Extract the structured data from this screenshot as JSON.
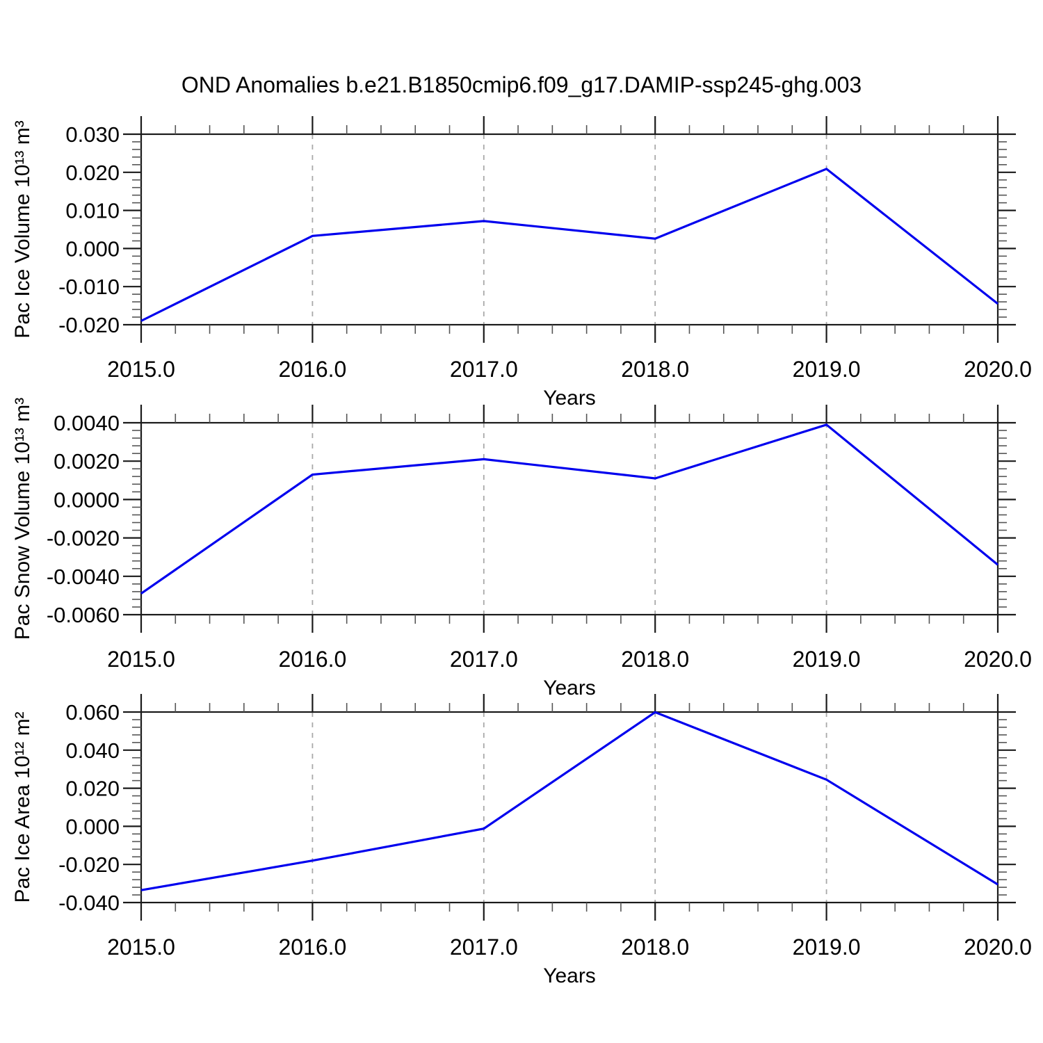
{
  "title": "OND Anomalies b.e21.B1850cmip6.f09_g17.DAMIP-ssp245-ghg.003",
  "line_color": "#0000ee",
  "grid_color": "#a9a9a9",
  "frame_color": "#1a1a1a",
  "minor_tick_color": "#555555",
  "chart_data": [
    {
      "type": "line",
      "name": "pac-ice-volume",
      "ylabel": "Pac Ice Volume 10¹³ m³",
      "xlabel": "Years",
      "x": [
        2015.0,
        2016.0,
        2017.0,
        2018.0,
        2019.0,
        2020.0
      ],
      "values": [
        -0.019,
        0.0033,
        0.0072,
        0.0026,
        0.0209,
        -0.0145
      ],
      "xlim": [
        2015.0,
        2020.0
      ],
      "ylim": [
        -0.02,
        0.03
      ],
      "ytick_step": 0.01,
      "x_minor_step": 0.2,
      "ytick_labels": [
        "0.030",
        "0.020",
        "0.010",
        "0.000",
        "-0.010",
        "-0.020"
      ],
      "xtick_labels": [
        "2015.0",
        "2016.0",
        "2017.0",
        "2018.0",
        "2019.0",
        "2020.0"
      ],
      "grid_x": [
        2016.0,
        2017.0,
        2018.0,
        2019.0
      ],
      "grid_on": "vertical-dashed",
      "legend": "none"
    },
    {
      "type": "line",
      "name": "pac-snow-volume",
      "ylabel": "Pac Snow Volume 10¹³ m³",
      "xlabel": "Years",
      "x": [
        2015.0,
        2016.0,
        2017.0,
        2018.0,
        2019.0,
        2020.0
      ],
      "values": [
        -0.0049,
        0.0013,
        0.0021,
        0.0011,
        0.0039,
        -0.0034
      ],
      "xlim": [
        2015.0,
        2020.0
      ],
      "ylim": [
        -0.006,
        0.004
      ],
      "ytick_step": 0.002,
      "x_minor_step": 0.2,
      "ytick_labels": [
        "0.0040",
        "0.0020",
        "0.0000",
        "-0.0020",
        "-0.0040",
        "-0.0060"
      ],
      "xtick_labels": [
        "2015.0",
        "2016.0",
        "2017.0",
        "2018.0",
        "2019.0",
        "2020.0"
      ],
      "grid_x": [
        2016.0,
        2017.0,
        2018.0,
        2019.0
      ],
      "grid_on": "vertical-dashed",
      "legend": "none"
    },
    {
      "type": "line",
      "name": "pac-ice-area",
      "ylabel": "Pac Ice Area 10¹² m²",
      "xlabel": "Years",
      "x": [
        2015.0,
        2016.0,
        2017.0,
        2018.0,
        2019.0,
        2020.0
      ],
      "values": [
        -0.0335,
        -0.018,
        -0.0012,
        0.0599,
        0.0245,
        -0.0305
      ],
      "xlim": [
        2015.0,
        2020.0
      ],
      "ylim": [
        -0.04,
        0.06
      ],
      "ytick_step": 0.02,
      "x_minor_step": 0.2,
      "ytick_labels": [
        "0.060",
        "0.040",
        "0.020",
        "0.000",
        "-0.020",
        "-0.040"
      ],
      "xtick_labels": [
        "2015.0",
        "2016.0",
        "2017.0",
        "2018.0",
        "2019.0",
        "2020.0"
      ],
      "grid_x": [
        2016.0,
        2017.0,
        2018.0,
        2019.0
      ],
      "grid_on": "vertical-dashed",
      "legend": "none"
    }
  ]
}
